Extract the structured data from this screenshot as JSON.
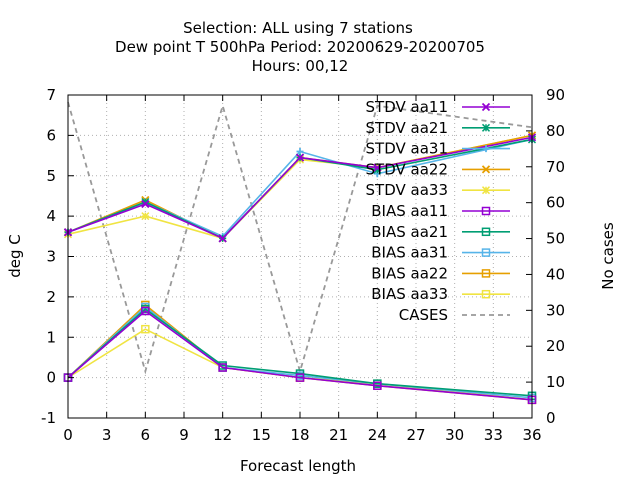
{
  "chart_data": {
    "type": "line",
    "title_lines": [
      "Selection: ALL using     7 stations",
      "Dew point T 500hPa   Period: 20200629-20200705",
      "Hours:  00,12"
    ],
    "xlabel": "Forecast length",
    "ylabel": "deg C",
    "y2label": "No cases",
    "xlim": [
      0,
      36
    ],
    "ylim": [
      -1,
      7
    ],
    "y2lim": [
      0,
      90
    ],
    "xticks": [
      0,
      3,
      6,
      9,
      12,
      15,
      18,
      21,
      24,
      27,
      30,
      33,
      36
    ],
    "yticks": [
      -1,
      0,
      1,
      2,
      3,
      4,
      5,
      6,
      7
    ],
    "y2ticks": [
      0,
      10,
      20,
      30,
      40,
      50,
      60,
      70,
      80,
      90
    ],
    "grid": true,
    "legend_position": "top-right",
    "x": [
      0,
      6,
      12,
      18,
      24,
      36
    ],
    "series": [
      {
        "name": "STDV aa11",
        "color": "#9400d3",
        "marker": "x-cross",
        "dash": "solid",
        "axis": "y1",
        "values": [
          3.6,
          4.3,
          3.45,
          5.45,
          5.2,
          5.95
        ]
      },
      {
        "name": "STDV aa21",
        "color": "#009e73",
        "marker": "star",
        "dash": "solid",
        "axis": "y1",
        "values": [
          3.6,
          4.35,
          3.45,
          5.45,
          5.15,
          5.9
        ]
      },
      {
        "name": "STDV aa31",
        "color": "#56b4e9",
        "marker": "plus",
        "dash": "solid",
        "axis": "y1",
        "values": [
          3.6,
          4.35,
          3.5,
          5.6,
          5.05,
          5.9
        ]
      },
      {
        "name": "STDV aa22",
        "color": "#e69f00",
        "marker": "x-cross",
        "dash": "solid",
        "axis": "y1",
        "values": [
          3.6,
          4.4,
          3.45,
          5.45,
          5.2,
          6.0
        ]
      },
      {
        "name": "STDV aa33",
        "color": "#f0e442",
        "marker": "star",
        "dash": "solid",
        "axis": "y1",
        "values": [
          3.55,
          4.0,
          3.45,
          5.4,
          5.2,
          6.0
        ]
      },
      {
        "name": "BIAS aa11",
        "color": "#9400d3",
        "marker": "square",
        "dash": "solid",
        "axis": "y1",
        "values": [
          0.0,
          1.65,
          0.25,
          0.0,
          -0.2,
          -0.55
        ]
      },
      {
        "name": "BIAS aa21",
        "color": "#009e73",
        "marker": "square",
        "dash": "solid",
        "axis": "y1",
        "values": [
          0.0,
          1.7,
          0.3,
          0.1,
          -0.15,
          -0.45
        ]
      },
      {
        "name": "BIAS aa31",
        "color": "#56b4e9",
        "marker": "square",
        "dash": "solid",
        "axis": "y1",
        "values": [
          0.0,
          1.75,
          0.25,
          0.05,
          -0.15,
          -0.5
        ]
      },
      {
        "name": "BIAS aa22",
        "color": "#e69f00",
        "marker": "square",
        "dash": "solid",
        "axis": "y1",
        "values": [
          0.0,
          1.8,
          0.25,
          0.0,
          -0.2,
          -0.55
        ]
      },
      {
        "name": "BIAS aa33",
        "color": "#f0e442",
        "marker": "square",
        "dash": "solid",
        "axis": "y1",
        "values": [
          0.0,
          1.2,
          0.25,
          0.0,
          -0.15,
          -0.55
        ]
      },
      {
        "name": "CASES",
        "color": "#999999",
        "marker": "none",
        "dash": "dashed",
        "axis": "y2",
        "values": [
          88,
          13,
          87,
          13,
          87,
          81
        ]
      }
    ]
  }
}
